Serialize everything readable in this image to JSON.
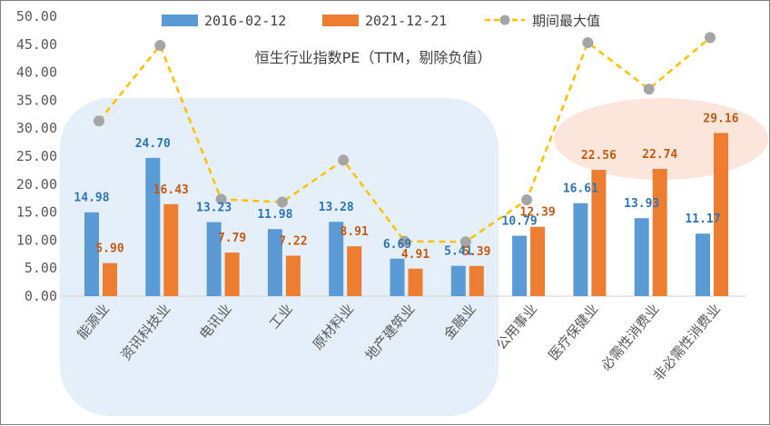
{
  "chart_data": {
    "type": "bar",
    "title": "恒生行业指数PE（TTM，剔除负值）",
    "categories": [
      "能源业",
      "资讯科技业",
      "电讯业",
      "工业",
      "原材料业",
      "地产建筑业",
      "金融业",
      "公用事业",
      "医疗保健业",
      "必需性消费业",
      "非必需性消费业"
    ],
    "series": [
      {
        "name": "2016-02-12",
        "type": "bar",
        "color": "#5b9bd5",
        "values": [
          14.98,
          24.7,
          13.23,
          11.98,
          13.28,
          6.69,
          5.41,
          10.79,
          16.61,
          13.93,
          11.17
        ],
        "labels": [
          "14.98",
          "24.70",
          "13.23",
          "11.98",
          "13.28",
          "6.69",
          "5.41",
          "10.79",
          "16.61",
          "13.93",
          "11.17"
        ]
      },
      {
        "name": "2021-12-21",
        "type": "bar",
        "color": "#ed7d31",
        "values": [
          5.9,
          16.43,
          7.79,
          7.22,
          8.91,
          4.91,
          5.39,
          12.39,
          22.56,
          22.74,
          29.16
        ],
        "labels": [
          "5.90",
          "16.43",
          "7.79",
          "7.22",
          "8.91",
          "4.91",
          "5.39",
          "12.39",
          "22.56",
          "22.74",
          "29.16"
        ]
      },
      {
        "name": "期间最大值",
        "type": "line",
        "color": "#ffc000",
        "marker_color": "#a5a5a5",
        "values": [
          31.3,
          44.8,
          17.3,
          16.8,
          24.3,
          9.8,
          9.7,
          17.2,
          45.3,
          37.0,
          46.2
        ]
      }
    ],
    "yticks": [
      "0.00",
      "5.00",
      "10.00",
      "15.00",
      "20.00",
      "25.00",
      "30.00",
      "35.00",
      "40.00",
      "45.00",
      "50.00"
    ],
    "ylim": [
      0,
      50
    ],
    "legend": "top",
    "grid": false
  }
}
